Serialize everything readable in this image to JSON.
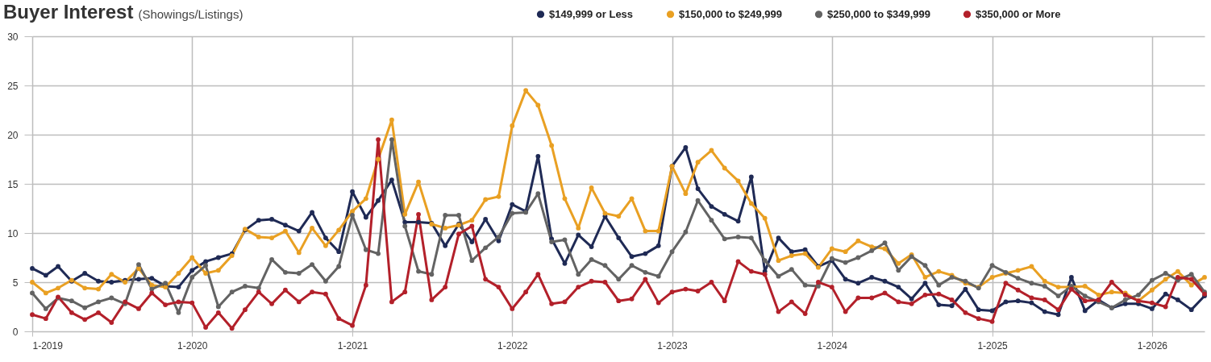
{
  "chart_data": {
    "type": "line",
    "title": "Buyer Interest",
    "subtitle": "(Showings/Listings)",
    "x": [
      "2019-01",
      "2019-02",
      "2019-03",
      "2019-04",
      "2019-05",
      "2019-06",
      "2019-07",
      "2019-08",
      "2019-09",
      "2019-10",
      "2019-11",
      "2019-12",
      "2020-01",
      "2020-02",
      "2020-03",
      "2020-04",
      "2020-05",
      "2020-06",
      "2020-07",
      "2020-08",
      "2020-09",
      "2020-10",
      "2020-11",
      "2020-12",
      "2021-01",
      "2021-02",
      "2021-03",
      "2021-04",
      "2021-05",
      "2021-06",
      "2021-07",
      "2021-08",
      "2021-09",
      "2021-10",
      "2021-11",
      "2021-12",
      "2022-01",
      "2022-02",
      "2022-03",
      "2022-04",
      "2022-05",
      "2022-06",
      "2022-07",
      "2022-08",
      "2022-09",
      "2022-10",
      "2022-11",
      "2022-12",
      "2023-01",
      "2023-02",
      "2023-03",
      "2023-04",
      "2023-05",
      "2023-06",
      "2023-07",
      "2023-08",
      "2023-09",
      "2023-10",
      "2023-11",
      "2023-12",
      "2024-01",
      "2024-02",
      "2024-03",
      "2024-04",
      "2024-05",
      "2024-06",
      "2024-07",
      "2024-08",
      "2024-09",
      "2024-10",
      "2024-11",
      "2024-12",
      "2025-01",
      "2025-02",
      "2025-03",
      "2025-04",
      "2025-05",
      "2025-06",
      "2025-07",
      "2025-08",
      "2025-09",
      "2025-10",
      "2025-11",
      "2025-12",
      "2026-01",
      "2026-02",
      "2026-03",
      "2026-04",
      "2026-05"
    ],
    "xlim": [
      "2019-01",
      "2026-05"
    ],
    "xticks": [
      {
        "value": "2019-01",
        "label": "1-2019"
      },
      {
        "value": "2020-01",
        "label": "1-2020"
      },
      {
        "value": "2021-01",
        "label": "1-2021"
      },
      {
        "value": "2022-01",
        "label": "1-2022"
      },
      {
        "value": "2023-01",
        "label": "1-2023"
      },
      {
        "value": "2024-01",
        "label": "1-2024"
      },
      {
        "value": "2025-01",
        "label": "1-2025"
      },
      {
        "value": "2026-01",
        "label": "1-2026"
      }
    ],
    "ylim": [
      0,
      30
    ],
    "yticks": [
      0,
      5,
      10,
      15,
      20,
      25,
      30
    ],
    "grid": true,
    "legend": "top right",
    "marker": "circle",
    "line_style": "solid",
    "series": [
      {
        "name": "$149,999 or Less",
        "color": "#1f2a55",
        "values": [
          6.4,
          5.7,
          6.6,
          5.1,
          5.9,
          5.1,
          5.0,
          5.2,
          5.3,
          5.4,
          4.6,
          4.5,
          6.2,
          7.1,
          7.5,
          7.9,
          10.3,
          11.3,
          11.4,
          10.8,
          10.2,
          12.1,
          9.5,
          8.1,
          14.2,
          11.6,
          13.3,
          15.4,
          11.1,
          11.1,
          11.0,
          8.7,
          10.9,
          9.1,
          11.4,
          9.2,
          12.9,
          12.2,
          17.8,
          9.4,
          6.9,
          9.8,
          8.6,
          11.7,
          9.5,
          7.6,
          7.9,
          8.7,
          16.8,
          18.7,
          14.5,
          12.7,
          11.9,
          11.2,
          15.7,
          6.1,
          9.5,
          8.1,
          8.3,
          6.6,
          7.2,
          5.3,
          4.9,
          5.5,
          5.1,
          4.5,
          3.3,
          4.9,
          2.7,
          2.6,
          4.3,
          2.2,
          2.1,
          3.0,
          3.1,
          2.9,
          2.0,
          1.7,
          5.5,
          2.1,
          3.2,
          2.4,
          2.8,
          2.8,
          2.3,
          3.8,
          3.2,
          2.2,
          3.6
        ]
      },
      {
        "name": "$150,000 to $249,999",
        "color": "#e9a023",
        "values": [
          5.0,
          3.9,
          4.4,
          5.2,
          4.4,
          4.3,
          5.8,
          5.0,
          6.4,
          4.7,
          4.5,
          5.9,
          7.5,
          5.9,
          6.2,
          7.7,
          10.4,
          9.6,
          9.5,
          10.2,
          8.0,
          10.5,
          8.7,
          10.3,
          12.2,
          13.5,
          17.5,
          21.5,
          11.9,
          15.2,
          10.9,
          10.5,
          10.8,
          11.3,
          13.4,
          13.7,
          20.9,
          24.5,
          23.0,
          18.9,
          13.5,
          10.5,
          14.6,
          12.0,
          11.7,
          13.5,
          10.2,
          10.2,
          16.8,
          14.0,
          17.2,
          18.4,
          16.6,
          15.3,
          13.0,
          11.5,
          7.2,
          7.7,
          7.9,
          6.5,
          8.4,
          8.1,
          9.2,
          8.6,
          8.4,
          6.9,
          7.8,
          5.5,
          6.1,
          5.7,
          4.9,
          4.5,
          5.5,
          5.9,
          6.2,
          6.6,
          5.1,
          4.5,
          4.5,
          4.6,
          3.7,
          4.0,
          3.9,
          3.1,
          4.2,
          5.3,
          6.1,
          4.7,
          5.5
        ]
      },
      {
        "name": "$250,000 to $349,999",
        "color": "#636363",
        "values": [
          3.9,
          2.3,
          3.4,
          3.1,
          2.4,
          3.0,
          3.4,
          2.8,
          6.8,
          4.3,
          4.9,
          1.9,
          5.5,
          6.7,
          2.5,
          4.0,
          4.6,
          4.4,
          7.3,
          6.0,
          5.9,
          6.8,
          5.1,
          6.6,
          11.8,
          8.3,
          7.9,
          19.5,
          10.7,
          6.1,
          5.8,
          11.8,
          11.8,
          7.2,
          8.5,
          9.6,
          12.0,
          12.1,
          14.0,
          9.1,
          9.3,
          5.8,
          7.3,
          6.7,
          5.3,
          6.7,
          6.0,
          5.6,
          8.1,
          10.1,
          13.3,
          11.3,
          9.4,
          9.6,
          9.5,
          7.2,
          5.6,
          6.3,
          4.7,
          4.6,
          7.4,
          7.0,
          7.5,
          8.2,
          9.0,
          6.2,
          7.6,
          6.7,
          4.7,
          5.5,
          5.1,
          4.4,
          6.7,
          6.0,
          5.4,
          4.9,
          4.6,
          3.6,
          4.6,
          3.6,
          3.0,
          2.4,
          3.2,
          3.7,
          5.2,
          5.9,
          5.2,
          5.8,
          4.0
        ]
      },
      {
        "name": "$350,000 or More",
        "color": "#b3202a",
        "values": [
          1.7,
          1.3,
          3.5,
          1.9,
          1.2,
          1.9,
          0.9,
          3.0,
          2.3,
          3.9,
          2.7,
          3.0,
          2.9,
          0.4,
          1.9,
          0.3,
          2.2,
          4.0,
          2.8,
          4.2,
          3.0,
          4.0,
          3.8,
          1.3,
          0.6,
          4.7,
          19.5,
          3.0,
          4.0,
          11.9,
          3.2,
          4.5,
          9.9,
          10.7,
          5.3,
          4.5,
          2.3,
          4.0,
          5.8,
          2.8,
          3.0,
          4.5,
          5.1,
          5.0,
          3.1,
          3.3,
          5.3,
          2.9,
          4.0,
          4.3,
          4.1,
          5.0,
          3.1,
          7.1,
          6.1,
          5.8,
          2.0,
          3.0,
          1.8,
          5.0,
          4.5,
          2.0,
          3.4,
          3.4,
          3.9,
          3.0,
          2.8,
          3.7,
          3.8,
          3.2,
          1.9,
          1.3,
          1.0,
          4.9,
          4.2,
          3.4,
          3.2,
          2.2,
          4.3,
          3.1,
          3.2,
          5.0,
          3.7,
          3.1,
          2.9,
          2.5,
          5.5,
          5.3,
          3.8
        ]
      }
    ]
  }
}
